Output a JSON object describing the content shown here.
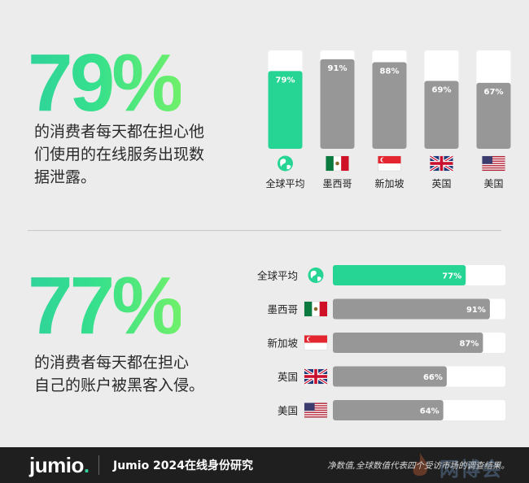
{
  "stat_top": {
    "value": "79%",
    "description": "的消费者每天都在担心他\n们使用的在线服务出现数\n据泄露。"
  },
  "stat_bottom": {
    "value": "77%",
    "description": "的消费者每天都在担心\n自己的账户被黑客入侵。"
  },
  "colors": {
    "accent": "#26d494",
    "bar_gray": "#979797",
    "bar_track": "#ffffff"
  },
  "chart_data": [
    {
      "type": "bar",
      "orientation": "vertical",
      "categories": [
        "全球平均",
        "墨西哥",
        "新加坡",
        "英国",
        "美国"
      ],
      "values": [
        79,
        91,
        88,
        69,
        67
      ],
      "data_labels": [
        "79%",
        "91%",
        "88%",
        "69%",
        "67%"
      ],
      "icons": [
        "globe-icon",
        "mexico-flag-icon",
        "singapore-flag-icon",
        "uk-flag-icon",
        "us-flag-icon"
      ],
      "highlight_index": 0,
      "ylim": [
        0,
        100
      ]
    },
    {
      "type": "bar",
      "orientation": "horizontal",
      "categories": [
        "全球平均",
        "墨西哥",
        "新加坡",
        "英国",
        "美国"
      ],
      "values": [
        77,
        91,
        87,
        66,
        64
      ],
      "data_labels": [
        "77%",
        "91%",
        "87%",
        "66%",
        "64%"
      ],
      "icons": [
        "globe-icon",
        "mexico-flag-icon",
        "singapore-flag-icon",
        "uk-flag-icon",
        "us-flag-icon"
      ],
      "highlight_index": 0,
      "xlim": [
        0,
        100
      ]
    }
  ],
  "footer": {
    "logo": "jumio",
    "logo_dot": ".",
    "title": "Jumio 2024在线身份研究",
    "note": "净数值,全球数值代表四个受访市场的调查结果。"
  },
  "watermark": {
    "text": "网博会"
  }
}
